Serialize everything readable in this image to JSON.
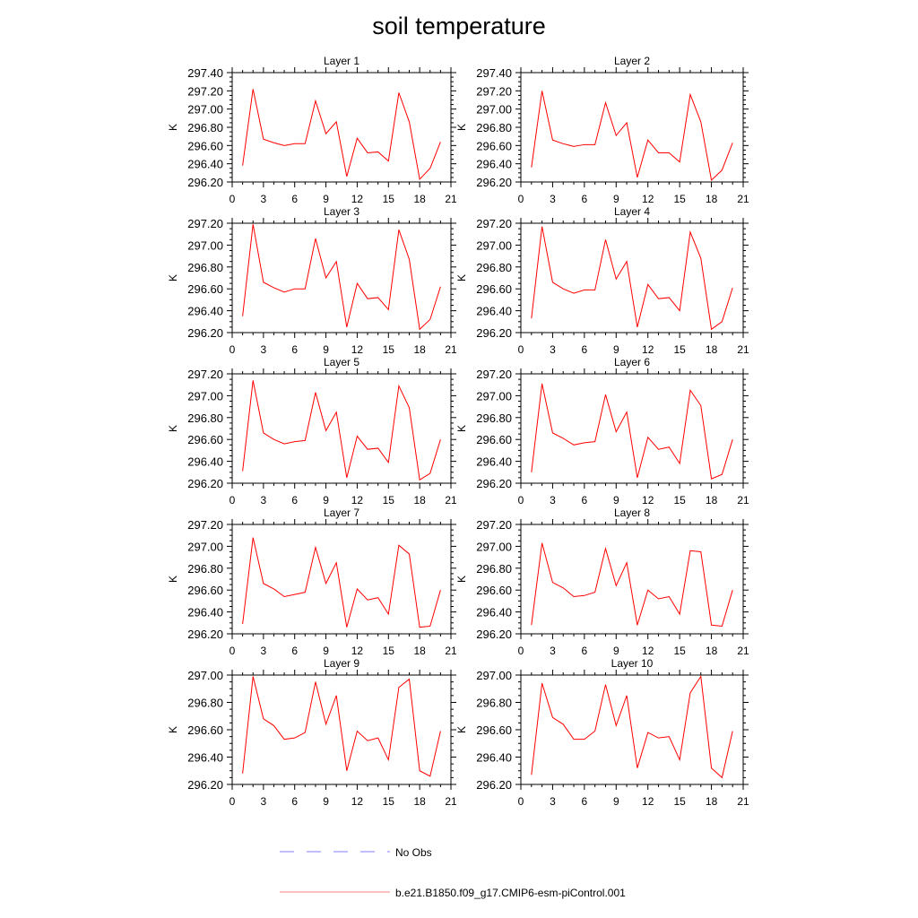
{
  "title": "soil temperature",
  "legend": {
    "placement": "bottom",
    "items": [
      {
        "label": "No Obs",
        "color": "#8080ff",
        "style": "dashed"
      },
      {
        "label": "b.e21.B1850.f09_g17.CMIP6-esm-piControl.001",
        "color": "#ff8080",
        "style": "solid"
      }
    ]
  },
  "chart_data": [
    {
      "type": "line",
      "title": "Layer 1",
      "ylabel": "K",
      "xlabel": "",
      "xlim": [
        0,
        21
      ],
      "ylim": [
        296.2,
        297.4
      ],
      "xticks": [
        0,
        3,
        6,
        9,
        12,
        15,
        18,
        21
      ],
      "yticks": [
        "296.20",
        "296.40",
        "296.60",
        "296.80",
        "297.00",
        "297.20",
        "297.40"
      ],
      "color": "#ff0000",
      "x": [
        1,
        2,
        3,
        4,
        5,
        6,
        7,
        8,
        9,
        10,
        11,
        12,
        13,
        14,
        15,
        16,
        17,
        18,
        19,
        20
      ],
      "y": [
        296.38,
        297.22,
        296.67,
        296.63,
        296.6,
        296.62,
        296.62,
        297.09,
        296.73,
        296.86,
        296.26,
        296.68,
        296.52,
        296.53,
        296.43,
        297.18,
        296.86,
        296.23,
        296.35,
        296.64
      ]
    },
    {
      "type": "line",
      "title": "Layer 2",
      "ylabel": "K",
      "xlabel": "",
      "xlim": [
        0,
        21
      ],
      "ylim": [
        296.2,
        297.4
      ],
      "xticks": [
        0,
        3,
        6,
        9,
        12,
        15,
        18,
        21
      ],
      "yticks": [
        "296.20",
        "296.40",
        "296.60",
        "296.80",
        "297.00",
        "297.20",
        "297.40"
      ],
      "color": "#ff0000",
      "x": [
        1,
        2,
        3,
        4,
        5,
        6,
        7,
        8,
        9,
        10,
        11,
        12,
        13,
        14,
        15,
        16,
        17,
        18,
        19,
        20
      ],
      "y": [
        296.36,
        297.2,
        296.66,
        296.62,
        296.59,
        296.61,
        296.61,
        297.07,
        296.71,
        296.85,
        296.25,
        296.66,
        296.52,
        296.52,
        296.42,
        297.16,
        296.86,
        296.22,
        296.33,
        296.63
      ]
    },
    {
      "type": "line",
      "title": "Layer 3",
      "ylabel": "K",
      "xlabel": "",
      "xlim": [
        0,
        21
      ],
      "ylim": [
        296.2,
        297.2
      ],
      "xticks": [
        0,
        3,
        6,
        9,
        12,
        15,
        18,
        21
      ],
      "yticks": [
        "296.20",
        "296.40",
        "296.60",
        "296.80",
        "297.00",
        "297.20"
      ],
      "color": "#ff0000",
      "x": [
        1,
        2,
        3,
        4,
        5,
        6,
        7,
        8,
        9,
        10,
        11,
        12,
        13,
        14,
        15,
        16,
        17,
        18,
        19,
        20
      ],
      "y": [
        296.35,
        297.19,
        296.66,
        296.61,
        296.57,
        296.6,
        296.6,
        297.06,
        296.7,
        296.85,
        296.25,
        296.65,
        296.51,
        296.52,
        296.41,
        297.14,
        296.87,
        296.23,
        296.32,
        296.62
      ]
    },
    {
      "type": "line",
      "title": "Layer 4",
      "ylabel": "K",
      "xlabel": "",
      "xlim": [
        0,
        21
      ],
      "ylim": [
        296.2,
        297.2
      ],
      "xticks": [
        0,
        3,
        6,
        9,
        12,
        15,
        18,
        21
      ],
      "yticks": [
        "296.20",
        "296.40",
        "296.60",
        "296.80",
        "297.00",
        "297.20"
      ],
      "color": "#ff0000",
      "x": [
        1,
        2,
        3,
        4,
        5,
        6,
        7,
        8,
        9,
        10,
        11,
        12,
        13,
        14,
        15,
        16,
        17,
        18,
        19,
        20
      ],
      "y": [
        296.33,
        297.17,
        296.66,
        296.6,
        296.56,
        296.59,
        296.59,
        297.05,
        296.69,
        296.85,
        296.25,
        296.64,
        296.51,
        296.52,
        296.4,
        297.12,
        296.88,
        296.23,
        296.3,
        296.61
      ]
    },
    {
      "type": "line",
      "title": "Layer 5",
      "ylabel": "K",
      "xlabel": "",
      "xlim": [
        0,
        21
      ],
      "ylim": [
        296.2,
        297.2
      ],
      "xticks": [
        0,
        3,
        6,
        9,
        12,
        15,
        18,
        21
      ],
      "yticks": [
        "296.20",
        "296.40",
        "296.60",
        "296.80",
        "297.00",
        "297.20"
      ],
      "color": "#ff0000",
      "x": [
        1,
        2,
        3,
        4,
        5,
        6,
        7,
        8,
        9,
        10,
        11,
        12,
        13,
        14,
        15,
        16,
        17,
        18,
        19,
        20
      ],
      "y": [
        296.31,
        297.14,
        296.66,
        296.6,
        296.56,
        296.58,
        296.59,
        297.03,
        296.68,
        296.85,
        296.25,
        296.63,
        296.51,
        296.52,
        296.39,
        297.09,
        296.89,
        296.23,
        296.29,
        296.6
      ]
    },
    {
      "type": "line",
      "title": "Layer 6",
      "ylabel": "K",
      "xlabel": "",
      "xlim": [
        0,
        21
      ],
      "ylim": [
        296.2,
        297.2
      ],
      "xticks": [
        0,
        3,
        6,
        9,
        12,
        15,
        18,
        21
      ],
      "yticks": [
        "296.20",
        "296.40",
        "296.60",
        "296.80",
        "297.00",
        "297.20"
      ],
      "color": "#ff0000",
      "x": [
        1,
        2,
        3,
        4,
        5,
        6,
        7,
        8,
        9,
        10,
        11,
        12,
        13,
        14,
        15,
        16,
        17,
        18,
        19,
        20
      ],
      "y": [
        296.3,
        297.11,
        296.66,
        296.61,
        296.55,
        296.57,
        296.58,
        297.01,
        296.67,
        296.85,
        296.25,
        296.62,
        296.51,
        296.53,
        296.38,
        297.05,
        296.91,
        296.24,
        296.28,
        296.6
      ]
    },
    {
      "type": "line",
      "title": "Layer 7",
      "ylabel": "K",
      "xlabel": "",
      "xlim": [
        0,
        21
      ],
      "ylim": [
        296.2,
        297.2
      ],
      "xticks": [
        0,
        3,
        6,
        9,
        12,
        15,
        18,
        21
      ],
      "yticks": [
        "296.20",
        "296.40",
        "296.60",
        "296.80",
        "297.00",
        "297.20"
      ],
      "color": "#ff0000",
      "x": [
        1,
        2,
        3,
        4,
        5,
        6,
        7,
        8,
        9,
        10,
        11,
        12,
        13,
        14,
        15,
        16,
        17,
        18,
        19,
        20
      ],
      "y": [
        296.29,
        297.08,
        296.66,
        296.61,
        296.54,
        296.56,
        296.58,
        296.99,
        296.66,
        296.85,
        296.26,
        296.61,
        296.51,
        296.53,
        296.38,
        297.01,
        296.93,
        296.26,
        296.27,
        296.6
      ]
    },
    {
      "type": "line",
      "title": "Layer 8",
      "ylabel": "K",
      "xlabel": "",
      "xlim": [
        0,
        21
      ],
      "ylim": [
        296.2,
        297.2
      ],
      "xticks": [
        0,
        3,
        6,
        9,
        12,
        15,
        18,
        21
      ],
      "yticks": [
        "296.20",
        "296.40",
        "296.60",
        "296.80",
        "297.00",
        "297.20"
      ],
      "color": "#ff0000",
      "x": [
        1,
        2,
        3,
        4,
        5,
        6,
        7,
        8,
        9,
        10,
        11,
        12,
        13,
        14,
        15,
        16,
        17,
        18,
        19,
        20
      ],
      "y": [
        296.28,
        297.03,
        296.67,
        296.62,
        296.54,
        296.55,
        296.58,
        296.98,
        296.64,
        296.85,
        296.28,
        296.6,
        296.52,
        296.54,
        296.38,
        296.96,
        296.95,
        296.28,
        296.27,
        296.6
      ]
    },
    {
      "type": "line",
      "title": "Layer 9",
      "ylabel": "K",
      "xlabel": "",
      "xlim": [
        0,
        21
      ],
      "ylim": [
        296.2,
        297.0
      ],
      "xticks": [
        0,
        3,
        6,
        9,
        12,
        15,
        18,
        21
      ],
      "yticks": [
        "296.20",
        "296.40",
        "296.60",
        "296.80",
        "297.00"
      ],
      "color": "#ff0000",
      "x": [
        1,
        2,
        3,
        4,
        5,
        6,
        7,
        8,
        9,
        10,
        11,
        12,
        13,
        14,
        15,
        16,
        17,
        18,
        19,
        20
      ],
      "y": [
        296.28,
        296.99,
        296.68,
        296.63,
        296.53,
        296.54,
        296.58,
        296.95,
        296.64,
        296.85,
        296.3,
        296.59,
        296.52,
        296.54,
        296.38,
        296.91,
        296.97,
        296.3,
        296.26,
        296.59
      ]
    },
    {
      "type": "line",
      "title": "Layer 10",
      "ylabel": "K",
      "xlabel": "",
      "xlim": [
        0,
        21
      ],
      "ylim": [
        296.2,
        297.0
      ],
      "xticks": [
        0,
        3,
        6,
        9,
        12,
        15,
        18,
        21
      ],
      "yticks": [
        "296.20",
        "296.40",
        "296.60",
        "296.80",
        "297.00"
      ],
      "color": "#ff0000",
      "x": [
        1,
        2,
        3,
        4,
        5,
        6,
        7,
        8,
        9,
        10,
        11,
        12,
        13,
        14,
        15,
        16,
        17,
        18,
        19,
        20
      ],
      "y": [
        296.27,
        296.94,
        296.69,
        296.64,
        296.53,
        296.53,
        296.59,
        296.93,
        296.63,
        296.85,
        296.32,
        296.58,
        296.54,
        296.55,
        296.38,
        296.87,
        296.99,
        296.32,
        296.25,
        296.59
      ]
    }
  ]
}
